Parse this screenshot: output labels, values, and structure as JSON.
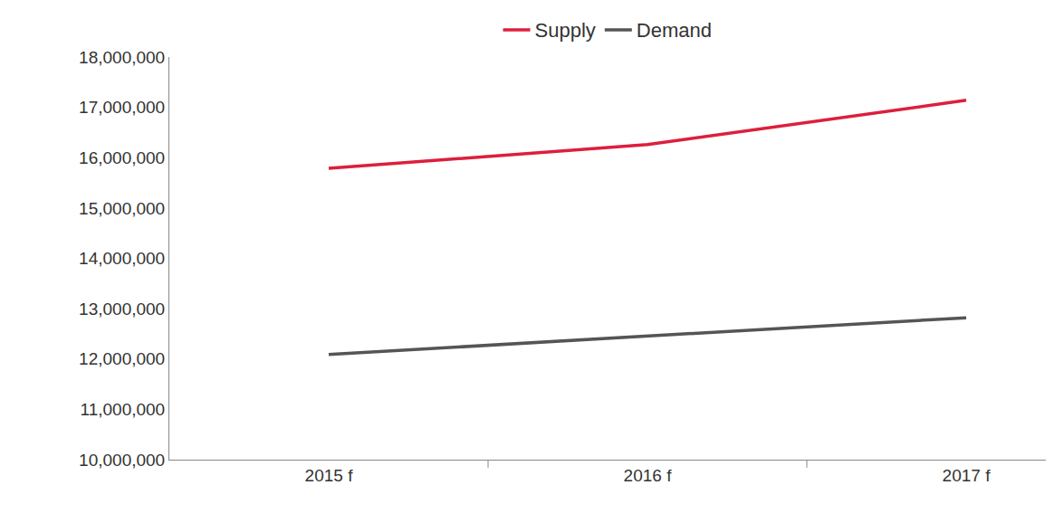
{
  "chart_data": {
    "type": "line",
    "categories": [
      "2015 f",
      "2016 f",
      "2017 f"
    ],
    "series": [
      {
        "name": "Supply",
        "color": "#dc1f3c",
        "values": [
          15790000,
          16260000,
          17140000
        ]
      },
      {
        "name": "Demand",
        "color": "#555555",
        "values": [
          12090000,
          12460000,
          12820000
        ]
      }
    ],
    "ylim": [
      10000000,
      18000000
    ],
    "yticks": [
      {
        "value": 10000000,
        "label": "10,000,000"
      },
      {
        "value": 11000000,
        "label": "11,000,000"
      },
      {
        "value": 12000000,
        "label": "12,000,000"
      },
      {
        "value": 13000000,
        "label": "13,000,000"
      },
      {
        "value": 14000000,
        "label": "14,000,000"
      },
      {
        "value": 15000000,
        "label": "15,000,000"
      },
      {
        "value": 16000000,
        "label": "16,000,000"
      },
      {
        "value": 17000000,
        "label": "17,000,000"
      },
      {
        "value": 18000000,
        "label": "18,000,000"
      }
    ],
    "grid": false,
    "legend": "top"
  }
}
